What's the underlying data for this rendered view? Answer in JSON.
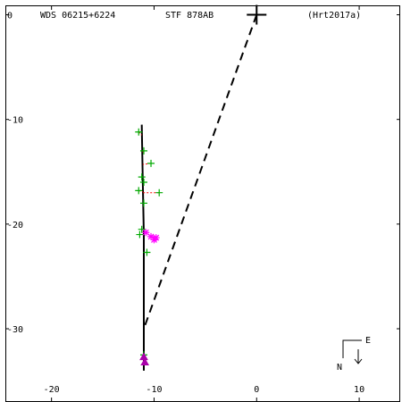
{
  "header": {
    "wds": "WDS 06215+6224",
    "discoverer": "STF 878AB",
    "reference": "(Hrt2017a)"
  },
  "compass": {
    "east": "E",
    "north": "N"
  },
  "colors": {
    "axes": "#000000",
    "orbit": "#000000",
    "micrometer": "#00aa00",
    "speckle": "#ff00ff",
    "residual": "#ff0000",
    "recent": "#aa00aa"
  },
  "chart_data": {
    "type": "scatter",
    "title": "STF 878AB",
    "xlim": [
      -24.5,
      14.0
    ],
    "ylim": [
      -37.0,
      0.9
    ],
    "x_ticks": [
      -20,
      -10,
      0,
      10
    ],
    "y_ticks": [
      0,
      -10,
      -20,
      -30
    ],
    "grid": false,
    "primary": {
      "x": 0,
      "y": 0
    },
    "orbit": [
      {
        "x": -11.2,
        "y": -10.5
      },
      {
        "x": -11.1,
        "y": -16.0
      },
      {
        "x": -11.0,
        "y": -21.0
      },
      {
        "x": -11.0,
        "y": -27.0
      },
      {
        "x": -11.0,
        "y": -34.0
      }
    ],
    "node_line": [
      {
        "x": 0,
        "y": 0
      },
      {
        "x": -11.0,
        "y": -30.0
      }
    ],
    "series": [
      {
        "marker": "+",
        "points": [
          [
            -11.5,
            -11.2
          ],
          [
            -11.0,
            -13.0
          ],
          [
            -11.2,
            -15.5
          ],
          [
            -11.0,
            -16.0
          ],
          [
            -10.3,
            -14.2
          ],
          [
            -11.5,
            -16.8
          ],
          [
            -9.5,
            -17.0
          ],
          [
            -11.0,
            -18.0
          ],
          [
            -11.2,
            -20.5
          ],
          [
            -11.4,
            -21.0
          ],
          [
            -10.7,
            -22.7
          ],
          [
            -11.0,
            -32.5
          ]
        ]
      },
      {
        "marker": "*",
        "points": [
          [
            -10.8,
            -20.8
          ],
          [
            -10.3,
            -21.2
          ],
          [
            -10.0,
            -21.5
          ],
          [
            -9.8,
            -21.3
          ]
        ]
      },
      {
        "marker": "^",
        "points": [
          [
            -11.0,
            -32.7
          ],
          [
            -10.9,
            -33.2
          ]
        ]
      }
    ],
    "residuals": [
      [
        [
          -11.5,
          -11.2
        ],
        [
          -11.2,
          -11.5
        ]
      ],
      [
        [
          -11.0,
          -13.0
        ],
        [
          -11.15,
          -13.2
        ]
      ],
      [
        [
          -11.5,
          -16.8
        ],
        [
          -11.1,
          -16.9
        ]
      ],
      [
        [
          -10.3,
          -14.2
        ],
        [
          -11.1,
          -14.3
        ]
      ],
      [
        [
          -9.5,
          -17.0
        ],
        [
          -11.1,
          -17.0
        ]
      ]
    ]
  }
}
